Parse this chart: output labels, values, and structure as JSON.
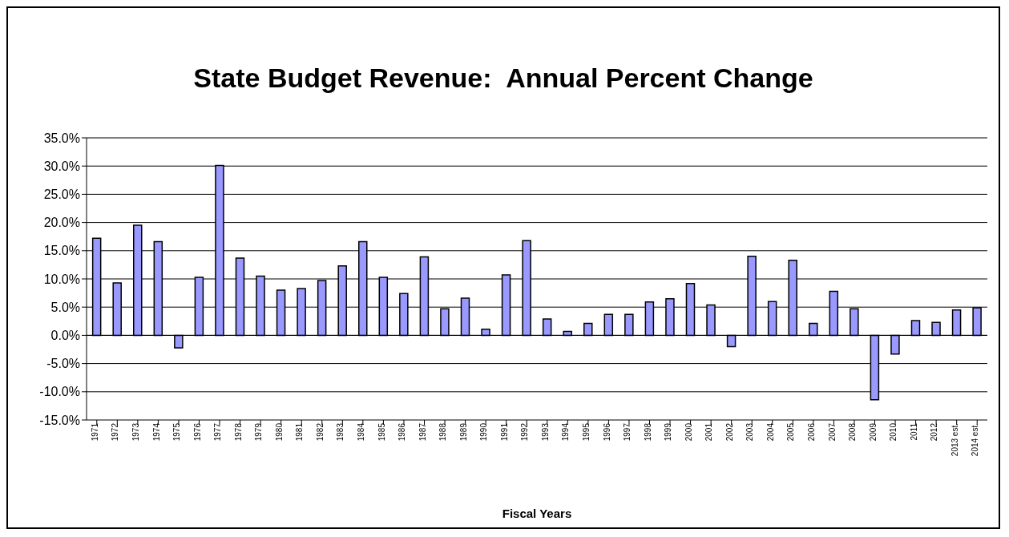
{
  "chart_data": {
    "type": "bar",
    "title": "State Budget Revenue:  Annual Percent Change",
    "xlabel": "Fiscal Years",
    "categories": [
      "1971",
      "1972",
      "1973",
      "1974",
      "1975",
      "1976",
      "1977",
      "1978",
      "1979",
      "1980",
      "1981",
      "1982",
      "1983",
      "1984",
      "1985",
      "1986",
      "1987",
      "1988",
      "1989",
      "1990",
      "1991",
      "1992",
      "1993",
      "1994",
      "1995",
      "1996",
      "1997",
      "1998",
      "1999",
      "2000",
      "2001",
      "2002",
      "2003",
      "2004",
      "2005",
      "2006",
      "2007",
      "2008",
      "2009",
      "2010",
      "2011",
      "2012",
      "2013 est.",
      "2014 est."
    ],
    "values": [
      17.2,
      9.3,
      19.5,
      16.6,
      -2.2,
      10.3,
      30.1,
      13.7,
      10.5,
      8.0,
      8.3,
      9.7,
      12.3,
      16.6,
      10.3,
      7.4,
      13.9,
      4.7,
      6.6,
      1.1,
      10.7,
      16.8,
      2.9,
      0.7,
      2.1,
      3.7,
      3.7,
      5.9,
      6.5,
      9.2,
      5.4,
      -2.0,
      14.0,
      6.0,
      13.3,
      2.1,
      7.8,
      4.7,
      -11.4,
      -3.3,
      2.6,
      2.3,
      4.5,
      4.9
    ],
    "color": "#9999ff",
    "ylim": [
      -15,
      35
    ],
    "yticks": [
      {
        "value": -15,
        "label": "-15.0%"
      },
      {
        "value": -10,
        "label": "-10.0%"
      },
      {
        "value": -5,
        "label": "-5.0%"
      },
      {
        "value": 0,
        "label": "0.0%"
      },
      {
        "value": 5,
        "label": "5.0%"
      },
      {
        "value": 10,
        "label": "10.0%"
      },
      {
        "value": 15,
        "label": "15.0%"
      },
      {
        "value": 20,
        "label": "20.0%"
      },
      {
        "value": 25,
        "label": "25.0%"
      },
      {
        "value": 30,
        "label": "30.0%"
      },
      {
        "value": 35,
        "label": "35.0%"
      }
    ],
    "grid": "y"
  }
}
